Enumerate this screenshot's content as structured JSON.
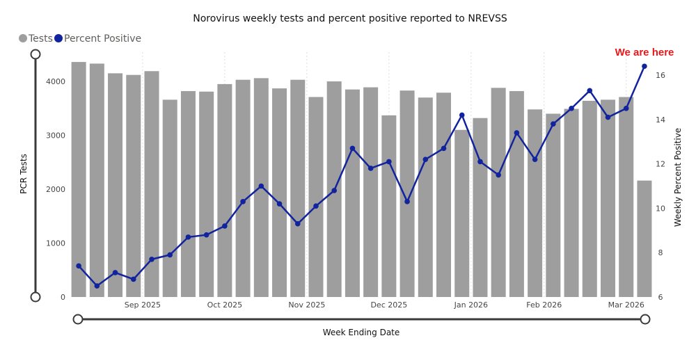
{
  "chart_data": {
    "type": "bar",
    "title": "Norovirus weekly tests and percent positive reported to NREVSS",
    "xlabel": "Week Ending Date",
    "ylabel_left": "PCR Tests",
    "ylabel_right": "Weekly Percent Positive",
    "x_tick_labels": [
      "Sep 2025",
      "Oct 2025",
      "Nov 2025",
      "Dec 2025",
      "Jan 2026",
      "Feb 2026",
      "Mar 2026"
    ],
    "x_tick_bar_index": [
      3.5,
      8,
      12.5,
      17,
      21.5,
      25.5,
      30
    ],
    "ylim_left": [
      0,
      4500
    ],
    "yticks_left": [
      0,
      1000,
      2000,
      3000,
      4000
    ],
    "ylim_right": [
      6,
      17
    ],
    "yticks_right": [
      6,
      8,
      10,
      12,
      14,
      16
    ],
    "grid": "vertical-dotted",
    "legend_position": "top-left",
    "series": [
      {
        "name": "Tests",
        "type": "bar",
        "color": "#9e9e9e",
        "values": [
          4360,
          4330,
          4150,
          4120,
          4190,
          3660,
          3820,
          3810,
          3950,
          4030,
          4060,
          3870,
          4030,
          3710,
          4000,
          3850,
          3890,
          3370,
          3830,
          3700,
          3790,
          3100,
          3320,
          3880,
          3820,
          3480,
          3400,
          3490,
          3640,
          3660,
          3710,
          2160
        ]
      },
      {
        "name": "Percent Positive",
        "type": "line",
        "axis": "right",
        "color": "#12239e",
        "values": [
          7.4,
          6.5,
          7.1,
          6.8,
          7.7,
          7.9,
          8.7,
          8.8,
          9.2,
          10.3,
          11.0,
          10.2,
          9.3,
          10.1,
          10.8,
          12.7,
          11.8,
          12.1,
          10.3,
          12.2,
          12.7,
          14.2,
          12.1,
          11.5,
          13.4,
          12.2,
          13.8,
          14.5,
          15.3,
          14.1,
          14.5,
          16.4
        ]
      }
    ],
    "annotation": {
      "text": "We are here",
      "color": "#e8191c",
      "point_index": 31
    }
  }
}
